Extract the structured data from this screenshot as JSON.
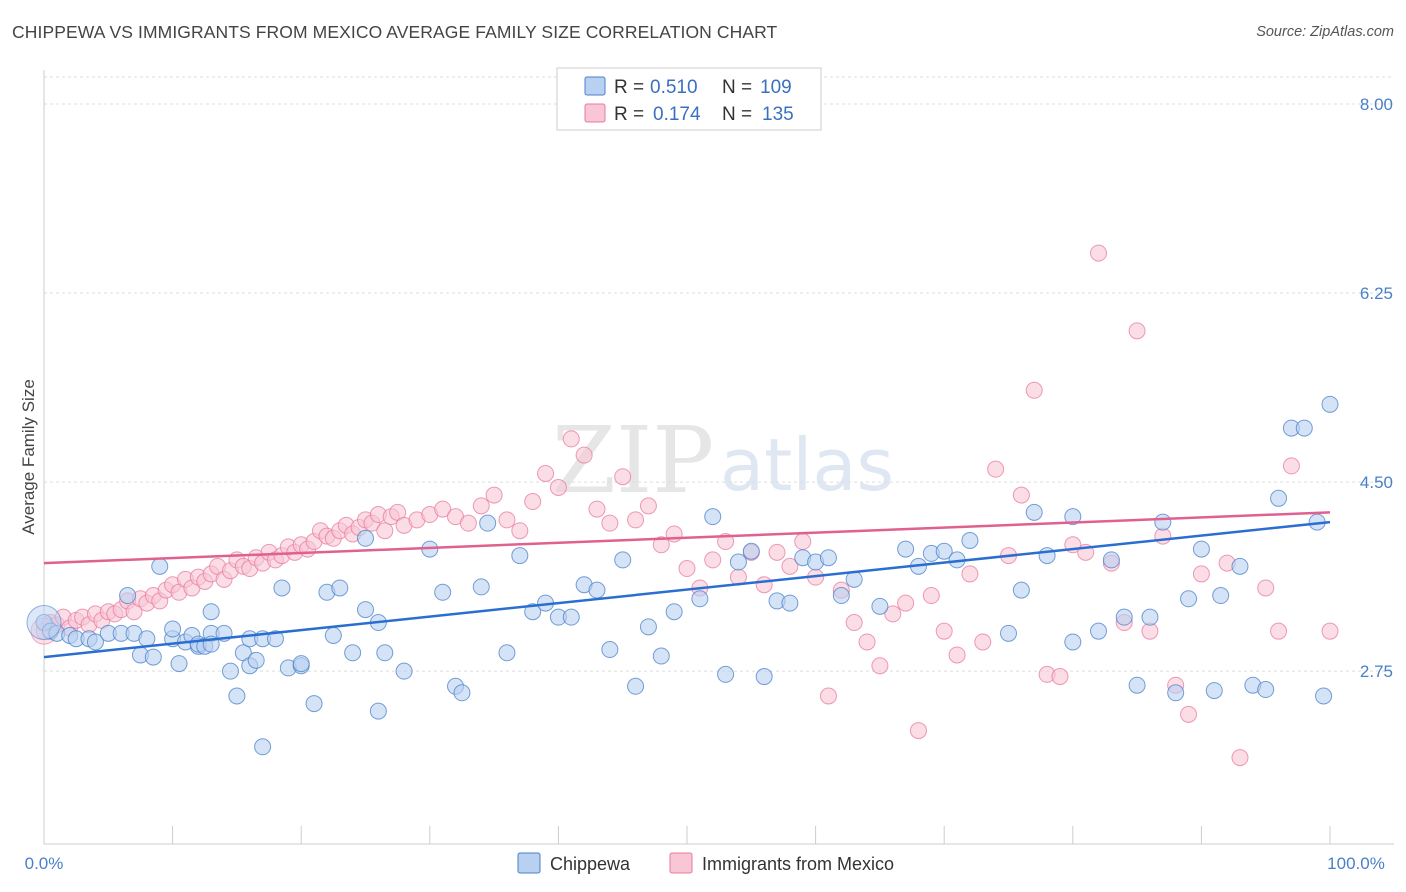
{
  "title": "CHIPPEWA VS IMMIGRANTS FROM MEXICO AVERAGE FAMILY SIZE CORRELATION CHART",
  "source": "Source: ZipAtlas.com",
  "watermark": {
    "zip": "ZIP",
    "atlas": "atlas"
  },
  "colors": {
    "blue": "#4a80c8",
    "blue_line": "#2a6fd0",
    "blue_fill": "#b9d1f1",
    "pink": "#e87aa0",
    "pink_line": "#e06090",
    "pink_fill": "#f8c6d5"
  },
  "legend": [
    {
      "r_label": "R =",
      "r_value": "0.510",
      "n_label": "N =",
      "n_value": "109"
    },
    {
      "r_label": "R =",
      "r_value": "0.174",
      "n_label": "N =",
      "n_value": "135"
    }
  ],
  "bottom_legend": [
    "Chippewa",
    "Immigrants from Mexico"
  ],
  "chart_data": {
    "type": "scatter",
    "xlabel": "",
    "ylabel": "Average Family Size",
    "xlim": [
      0,
      100
    ],
    "ylim": [
      1.15,
      8.25
    ],
    "x_tick_labels": [
      "0.0%",
      "100.0%"
    ],
    "y_ticks": [
      2.75,
      4.5,
      6.25,
      8.0
    ],
    "y_tick_labels": [
      "2.75",
      "4.50",
      "6.25",
      "8.00"
    ],
    "grid": true,
    "series": [
      {
        "name": "Chippewa",
        "trend": [
          [
            0,
            2.88
          ],
          [
            100,
            4.13
          ]
        ],
        "points": [
          [
            0,
            3.2
          ],
          [
            0.5,
            3.12
          ],
          [
            1,
            3.1
          ],
          [
            2,
            3.08
          ],
          [
            2.5,
            3.05
          ],
          [
            3.5,
            3.05
          ],
          [
            4,
            3.02
          ],
          [
            5,
            3.1
          ],
          [
            6,
            3.1
          ],
          [
            7,
            3.1
          ],
          [
            6.5,
            3.45
          ],
          [
            7.5,
            2.9
          ],
          [
            8,
            3.05
          ],
          [
            8.5,
            2.88
          ],
          [
            9,
            3.72
          ],
          [
            10,
            3.05
          ],
          [
            10,
            3.14
          ],
          [
            10.5,
            2.82
          ],
          [
            11,
            3.02
          ],
          [
            11.5,
            3.08
          ],
          [
            12,
            2.98
          ],
          [
            12,
            3.0
          ],
          [
            12.5,
            2.98
          ],
          [
            13,
            3.1
          ],
          [
            13,
            3.3
          ],
          [
            13,
            3.0
          ],
          [
            14,
            3.1
          ],
          [
            14.5,
            2.75
          ],
          [
            15,
            2.52
          ],
          [
            15.5,
            2.92
          ],
          [
            16,
            2.8
          ],
          [
            16,
            3.05
          ],
          [
            16.5,
            2.85
          ],
          [
            17,
            3.05
          ],
          [
            17,
            2.05
          ],
          [
            18,
            3.05
          ],
          [
            18.5,
            3.52
          ],
          [
            19,
            2.78
          ],
          [
            20,
            2.8
          ],
          [
            20,
            2.82
          ],
          [
            21,
            2.45
          ],
          [
            22,
            3.48
          ],
          [
            22.5,
            3.08
          ],
          [
            23,
            3.52
          ],
          [
            24,
            2.92
          ],
          [
            25,
            3.98
          ],
          [
            25,
            3.32
          ],
          [
            26,
            2.38
          ],
          [
            26,
            3.2
          ],
          [
            26.5,
            2.92
          ],
          [
            28,
            2.75
          ],
          [
            30,
            3.88
          ],
          [
            31,
            3.48
          ],
          [
            32,
            2.61
          ],
          [
            32.5,
            2.55
          ],
          [
            34,
            3.53
          ],
          [
            34.5,
            4.12
          ],
          [
            36,
            2.92
          ],
          [
            37,
            3.82
          ],
          [
            38,
            3.3
          ],
          [
            39,
            3.38
          ],
          [
            40,
            3.25
          ],
          [
            41,
            3.25
          ],
          [
            42,
            3.55
          ],
          [
            43,
            3.5
          ],
          [
            44,
            2.95
          ],
          [
            45,
            3.78
          ],
          [
            46,
            2.61
          ],
          [
            47,
            3.16
          ],
          [
            48,
            2.89
          ],
          [
            49,
            3.3
          ],
          [
            51,
            3.42
          ],
          [
            52,
            4.18
          ],
          [
            53,
            2.72
          ],
          [
            54,
            3.76
          ],
          [
            55,
            3.86
          ],
          [
            56,
            2.7
          ],
          [
            57,
            3.4
          ],
          [
            58,
            3.38
          ],
          [
            59,
            3.8
          ],
          [
            60,
            3.76
          ],
          [
            61,
            3.8
          ],
          [
            62,
            3.45
          ],
          [
            63,
            3.6
          ],
          [
            65,
            3.35
          ],
          [
            67,
            3.88
          ],
          [
            68,
            3.72
          ],
          [
            69,
            3.84
          ],
          [
            70,
            3.86
          ],
          [
            71,
            3.78
          ],
          [
            72,
            3.96
          ],
          [
            75,
            3.1
          ],
          [
            76,
            3.5
          ],
          [
            77,
            4.22
          ],
          [
            78,
            3.82
          ],
          [
            80,
            3.02
          ],
          [
            80,
            4.18
          ],
          [
            82,
            3.12
          ],
          [
            83,
            3.78
          ],
          [
            84,
            3.25
          ],
          [
            85,
            2.62
          ],
          [
            86,
            3.25
          ],
          [
            87,
            4.13
          ],
          [
            88,
            2.55
          ],
          [
            89,
            3.42
          ],
          [
            90,
            3.88
          ],
          [
            91,
            2.57
          ],
          [
            91.5,
            3.45
          ],
          [
            93,
            3.72
          ],
          [
            94,
            2.62
          ],
          [
            95,
            2.58
          ],
          [
            96,
            4.35
          ],
          [
            97,
            5.0
          ],
          [
            98,
            5.0
          ],
          [
            99,
            4.13
          ],
          [
            99.5,
            2.52
          ],
          [
            100,
            5.22
          ]
        ]
      },
      {
        "name": "Immigrants from Mexico",
        "trend": [
          [
            0,
            3.75
          ],
          [
            100,
            4.22
          ]
        ],
        "points": [
          [
            0,
            3.12
          ],
          [
            0.5,
            3.2
          ],
          [
            1,
            3.18
          ],
          [
            1.5,
            3.25
          ],
          [
            2,
            3.15
          ],
          [
            2.5,
            3.22
          ],
          [
            3,
            3.25
          ],
          [
            3.5,
            3.18
          ],
          [
            4,
            3.28
          ],
          [
            4.5,
            3.22
          ],
          [
            5,
            3.3
          ],
          [
            5.5,
            3.28
          ],
          [
            6,
            3.32
          ],
          [
            6.5,
            3.4
          ],
          [
            7,
            3.3
          ],
          [
            7.5,
            3.42
          ],
          [
            8,
            3.38
          ],
          [
            8.5,
            3.45
          ],
          [
            9,
            3.4
          ],
          [
            9.5,
            3.5
          ],
          [
            10,
            3.55
          ],
          [
            10.5,
            3.48
          ],
          [
            11,
            3.6
          ],
          [
            11.5,
            3.52
          ],
          [
            12,
            3.62
          ],
          [
            12.5,
            3.58
          ],
          [
            13,
            3.65
          ],
          [
            13.5,
            3.72
          ],
          [
            14,
            3.6
          ],
          [
            14.5,
            3.68
          ],
          [
            15,
            3.78
          ],
          [
            15.5,
            3.72
          ],
          [
            16,
            3.7
          ],
          [
            16.5,
            3.8
          ],
          [
            17,
            3.75
          ],
          [
            17.5,
            3.85
          ],
          [
            18,
            3.78
          ],
          [
            18.5,
            3.82
          ],
          [
            19,
            3.9
          ],
          [
            19.5,
            3.85
          ],
          [
            20,
            3.92
          ],
          [
            20.5,
            3.88
          ],
          [
            21,
            3.95
          ],
          [
            21.5,
            4.05
          ],
          [
            22,
            4.0
          ],
          [
            22.5,
            3.98
          ],
          [
            23,
            4.05
          ],
          [
            23.5,
            4.1
          ],
          [
            24,
            4.02
          ],
          [
            24.5,
            4.08
          ],
          [
            25,
            4.15
          ],
          [
            25.5,
            4.12
          ],
          [
            26,
            4.2
          ],
          [
            26.5,
            4.05
          ],
          [
            27,
            4.18
          ],
          [
            27.5,
            4.22
          ],
          [
            28,
            4.1
          ],
          [
            29,
            4.15
          ],
          [
            30,
            4.2
          ],
          [
            31,
            4.25
          ],
          [
            32,
            4.18
          ],
          [
            33,
            4.12
          ],
          [
            34,
            4.28
          ],
          [
            35,
            4.38
          ],
          [
            36,
            4.15
          ],
          [
            37,
            4.05
          ],
          [
            38,
            4.32
          ],
          [
            39,
            4.58
          ],
          [
            40,
            4.45
          ],
          [
            41,
            4.9
          ],
          [
            42,
            4.75
          ],
          [
            43,
            4.25
          ],
          [
            44,
            4.12
          ],
          [
            45,
            4.55
          ],
          [
            46,
            4.15
          ],
          [
            47,
            4.28
          ],
          [
            48,
            3.92
          ],
          [
            49,
            4.02
          ],
          [
            50,
            3.7
          ],
          [
            51,
            3.52
          ],
          [
            52,
            3.78
          ],
          [
            53,
            3.95
          ],
          [
            54,
            3.62
          ],
          [
            55,
            3.85
          ],
          [
            56,
            3.55
          ],
          [
            57,
            3.85
          ],
          [
            58,
            3.72
          ],
          [
            59,
            3.95
          ],
          [
            60,
            3.62
          ],
          [
            61,
            2.52
          ],
          [
            62,
            3.5
          ],
          [
            63,
            3.2
          ],
          [
            64,
            3.02
          ],
          [
            65,
            2.8
          ],
          [
            66,
            3.28
          ],
          [
            67,
            3.38
          ],
          [
            68,
            2.2
          ],
          [
            69,
            3.45
          ],
          [
            70,
            3.12
          ],
          [
            71,
            2.9
          ],
          [
            72,
            3.65
          ],
          [
            73,
            3.02
          ],
          [
            74,
            4.62
          ],
          [
            75,
            3.82
          ],
          [
            76,
            4.38
          ],
          [
            77,
            5.35
          ],
          [
            78,
            2.72
          ],
          [
            79,
            2.7
          ],
          [
            80,
            3.92
          ],
          [
            81,
            3.85
          ],
          [
            82,
            6.62
          ],
          [
            83,
            3.75
          ],
          [
            84,
            3.2
          ],
          [
            85,
            5.9
          ],
          [
            86,
            3.12
          ],
          [
            87,
            4.0
          ],
          [
            88,
            2.62
          ],
          [
            89,
            2.35
          ],
          [
            90,
            3.65
          ],
          [
            92,
            3.75
          ],
          [
            93,
            1.95
          ],
          [
            95,
            3.52
          ],
          [
            96,
            3.12
          ],
          [
            97,
            4.65
          ],
          [
            100,
            3.12
          ]
        ]
      }
    ]
  }
}
